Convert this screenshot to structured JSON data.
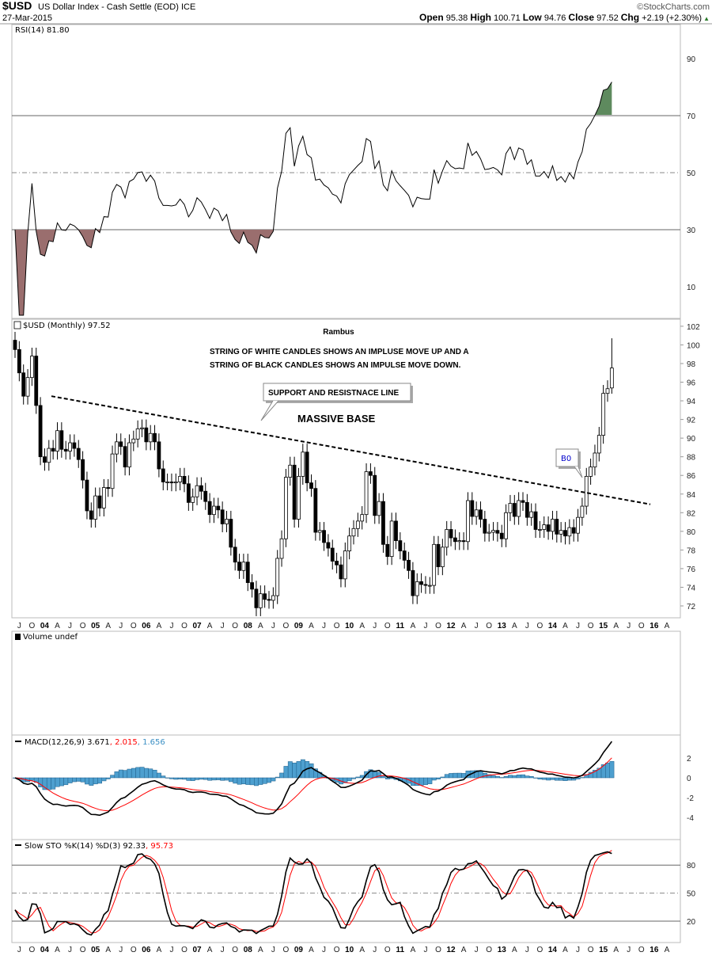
{
  "header": {
    "symbol": "$USD",
    "name": "US Dollar Index - Cash Settle (EOD) ICE",
    "date": "27-Mar-2015",
    "brand": "©StockCharts.com",
    "open_label": "Open",
    "open": "95.38",
    "high_label": "High",
    "high": "100.71",
    "low_label": "Low",
    "low": "94.76",
    "close_label": "Close",
    "close": "97.52",
    "chg_label": "Chg",
    "chg": "+2.19 (+2.30%)",
    "chg_arrow": "▲"
  },
  "panels": {
    "rsi_label": "RSI(14) 81.80",
    "price_label": "$USD (Monthly) 97.52",
    "volume_label": "Volume undef",
    "macd_label": "MACD(12,26,9) 3.671",
    "macd_signal_val": ", 2.015",
    "macd_hist_val": ", 1.656",
    "sto_label": "Slow STO %K(14) %D(3) 92.33",
    "sto_d_val": ", 95.73"
  },
  "annotations": {
    "author": "Rambus",
    "note_line1": "STRING OF WHITE CANDLES SHOWS AN IMPLUSE MOVE UP AND A",
    "note_line2": "STRING OF BLACK CANDLES SHOWS AN IMPULSE MOVE DOWN.",
    "callout": "SUPPORT AND RESISTNACE LINE",
    "base": "MASSIVE BASE",
    "breakout": "B0"
  },
  "colors": {
    "rsi_overbought": "#5e8a5e",
    "rsi_oversold": "#9a6e6e",
    "macd_line": "#000000",
    "macd_signal": "#ff0000",
    "macd_hist": "#4d9fcf",
    "sto_k": "#000000",
    "sto_d": "#ff0000",
    "breakout_text": "#0000cc"
  },
  "chart_data": {
    "type": "candlestick",
    "title": "$USD (Monthly)",
    "period": "Jun 2003 - Mar 2015, monthly",
    "first_open": 100.5,
    "closes": [
      99.5,
      97.0,
      94.5,
      96.5,
      98.8,
      93.5,
      88.0,
      87.4,
      88.9,
      88.6,
      90.8,
      88.8,
      88.6,
      89.5,
      88.9,
      87.7,
      85.5,
      82.2,
      81.3,
      83.8,
      82.5,
      84.7,
      84.6,
      88.3,
      89.6,
      89.1,
      86.9,
      89.5,
      89.9,
      91.0,
      91.1,
      89.6,
      90.5,
      89.6,
      86.7,
      85.3,
      85.3,
      85.2,
      85.3,
      85.9,
      85.1,
      83.1,
      83.7,
      84.9,
      84.3,
      83.2,
      81.8,
      82.7,
      82.3,
      80.8,
      81.3,
      78.3,
      76.7,
      75.8,
      76.7,
      74.5,
      73.8,
      71.8,
      73.3,
      72.7,
      72.6,
      73.1,
      77.1,
      79.2,
      85.8,
      87.1,
      81.3,
      85.9,
      88.5,
      85.2,
      84.6,
      79.9,
      80.1,
      78.8,
      78.2,
      76.8,
      76.4,
      74.9,
      77.9,
      79.5,
      80.3,
      81.1,
      81.8,
      86.4,
      86.0,
      81.7,
      83.2,
      78.6,
      77.3,
      81.1,
      79.0,
      77.9,
      76.9,
      75.8,
      73.1,
      74.6,
      74.3,
      74.2,
      74.2,
      78.6,
      76.2,
      78.3,
      80.2,
      79.3,
      78.9,
      79.0,
      78.9,
      83.3,
      81.6,
      82.3,
      81.3,
      79.8,
      79.9,
      80.1,
      79.8,
      79.2,
      82.0,
      83.0,
      81.6,
      83.3,
      83.1,
      81.5,
      82.1,
      80.2,
      80.2,
      80.7,
      80.0,
      81.3,
      79.7,
      80.1,
      79.5,
      80.4,
      79.8,
      81.5,
      82.7,
      85.9,
      86.9,
      88.4,
      90.3,
      94.8,
      95.3,
      97.52
    ],
    "last_candle": {
      "open": 95.38,
      "high": 100.71,
      "low": 94.76,
      "close": 97.52
    },
    "trendline": {
      "from": {
        "date": "2004-01",
        "value": 94.5
      },
      "to": {
        "date": "2015-11",
        "value": 82.9
      },
      "style": "dashed"
    },
    "price_axis": {
      "ticks": [
        "102",
        "100",
        "98",
        "96",
        "94",
        "92",
        "90",
        "88",
        "86",
        "84",
        "82",
        "80",
        "78",
        "76",
        "74",
        "72"
      ],
      "range": [
        71,
        102.5
      ]
    },
    "rsi": {
      "current": 81.8,
      "ticks": [
        "90",
        "70",
        "50",
        "30",
        "10"
      ],
      "levels": [
        70,
        50,
        30
      ],
      "range": [
        0,
        100
      ]
    },
    "macd": {
      "macd": 3.671,
      "signal": 2.015,
      "histogram": 1.656,
      "ticks": [
        "2",
        "0",
        "-2",
        "-4"
      ],
      "range": [
        -5.9,
        4.8
      ]
    },
    "sto": {
      "k": 92.33,
      "d": 95.73,
      "ticks": [
        "80",
        "50",
        "20"
      ],
      "levels": [
        80,
        50,
        20
      ],
      "range": [
        0,
        100
      ]
    },
    "x_ticks": [
      "A",
      "J",
      "O",
      "04",
      "A",
      "J",
      "O",
      "05",
      "A",
      "J",
      "O",
      "06",
      "A",
      "J",
      "O",
      "07",
      "A",
      "J",
      "O",
      "08",
      "A",
      "J",
      "O",
      "09",
      "A",
      "J",
      "O",
      "10",
      "A",
      "J",
      "O",
      "11",
      "A",
      "J",
      "O",
      "12",
      "A",
      "J",
      "O",
      "13",
      "A",
      "J",
      "O",
      "14",
      "A",
      "J",
      "O",
      "15",
      "A",
      "J",
      "O",
      "16",
      "A"
    ]
  }
}
